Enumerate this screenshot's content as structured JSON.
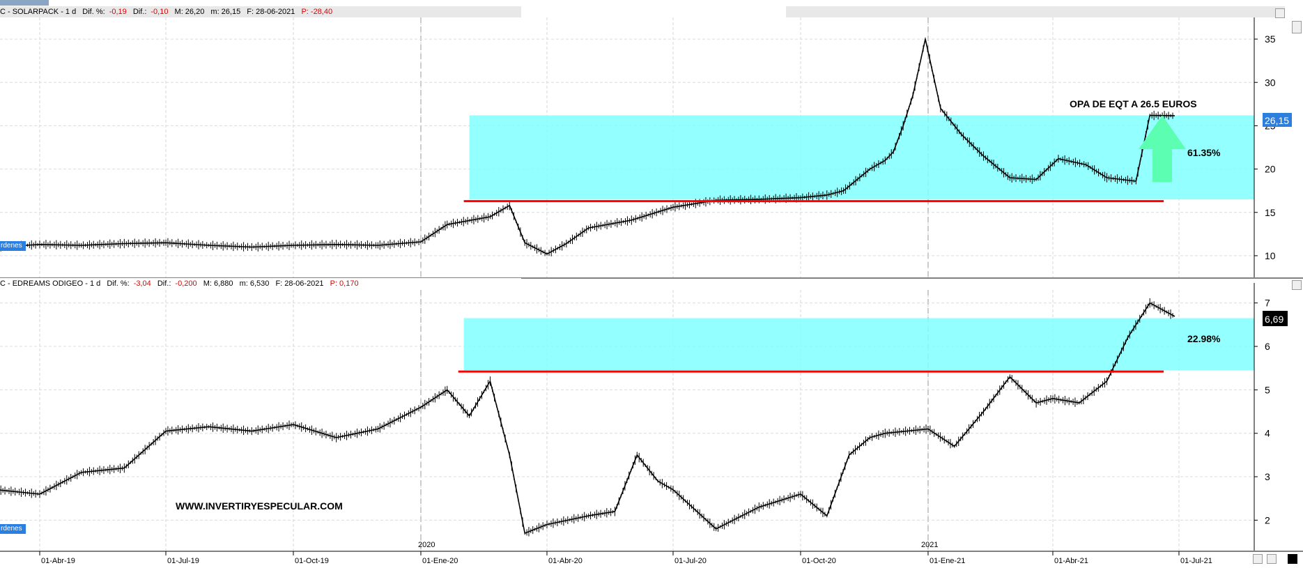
{
  "panels": [
    {
      "id": "solarpack",
      "header": {
        "title": "C - SOLARPACK - 1 d",
        "dif_pct_label": "Dif. %:",
        "dif_pct": "-0,19",
        "dif_label": "Dif.:",
        "dif": "-0,10",
        "max": "M: 26,20",
        "min": "m: 26,15",
        "date": "F: 28-06-2021",
        "p": "P: -28,40"
      },
      "orders_label": "rdenes",
      "price_tag": "26,15",
      "annotation": "OPA DE EQT A 26.5 EUROS",
      "pct_label": "61.35%",
      "colors": {
        "zone": "#80ffff",
        "support_line": "#ff0000",
        "arrow": "#5cffb2",
        "price_tag_bg": "#2d7fde"
      },
      "chart_data": {
        "type": "line",
        "title": "",
        "xlabel": "",
        "ylabel": "",
        "ylim": [
          7.5,
          37.5
        ],
        "yticks": [
          10,
          15,
          20,
          25,
          30,
          35
        ],
        "x": [
          "2019-03-01",
          "2019-04-01",
          "2019-05-01",
          "2019-06-01",
          "2019-07-01",
          "2019-08-01",
          "2019-09-01",
          "2019-10-01",
          "2019-11-01",
          "2019-12-01",
          "2020-01-01",
          "2020-01-20",
          "2020-02-20",
          "2020-03-05",
          "2020-03-16",
          "2020-04-01",
          "2020-04-15",
          "2020-05-01",
          "2020-06-01",
          "2020-07-01",
          "2020-08-01",
          "2020-09-01",
          "2020-10-01",
          "2020-10-20",
          "2020-11-01",
          "2020-11-20",
          "2020-12-01",
          "2020-12-07",
          "2020-12-14",
          "2020-12-21",
          "2020-12-30",
          "2021-01-10",
          "2021-01-25",
          "2021-02-10",
          "2021-03-01",
          "2021-03-20",
          "2021-04-05",
          "2021-04-25",
          "2021-05-10",
          "2021-05-31",
          "2021-06-10",
          "2021-06-28"
        ],
        "series": [
          {
            "values": [
              11,
              11.3,
              11.2,
              11.4,
              11.5,
              11.2,
              11,
              11.2,
              11.3,
              11.2,
              11.6,
              13.6,
              14.5,
              15.8,
              11.5,
              10.2,
              11.4,
              13.2,
              14.1,
              15.6,
              16.4,
              16.5,
              16.7,
              17,
              17.5,
              20,
              21,
              22,
              25,
              28.5,
              35,
              27,
              24,
              21.5,
              19,
              18.8,
              21.2,
              20.5,
              19,
              18.6,
              26.2,
              26.15
            ]
          }
        ],
        "zone": {
          "from": 16.5,
          "to": 26.2,
          "start": "2020-02-05"
        },
        "support": {
          "y": 16.3,
          "start": "2020-02-01",
          "end": "2021-06-20"
        }
      }
    },
    {
      "id": "edreams",
      "header": {
        "title": "C - EDREAMS ODIGEO - 1 d",
        "dif_pct_label": "Dif. %:",
        "dif_pct": "-3,04",
        "dif_label": "Dif.:",
        "dif": "-0,200",
        "max": "M: 6,880",
        "min": "m: 6,530",
        "date": "F: 28-06-2021",
        "p": "P: 0,170"
      },
      "orders_label": "rdenes",
      "price_tag": "6,69",
      "pct_label": "22.98%",
      "watermark": "WWW.INVERTIRYESPECULAR.COM",
      "colors": {
        "zone": "#80ffff",
        "support_line": "#ff0000",
        "price_tag_bg": "#000000"
      },
      "chart_data": {
        "type": "line",
        "title": "",
        "xlabel": "",
        "ylabel": "",
        "ylim": [
          1.3,
          7.3
        ],
        "yticks": [
          2,
          3,
          4,
          5,
          6,
          7
        ],
        "x": [
          "2019-03-01",
          "2019-04-01",
          "2019-05-01",
          "2019-06-01",
          "2019-07-01",
          "2019-08-01",
          "2019-09-01",
          "2019-10-01",
          "2019-11-01",
          "2019-12-01",
          "2020-01-01",
          "2020-01-20",
          "2020-02-05",
          "2020-02-20",
          "2020-03-05",
          "2020-03-16",
          "2020-04-01",
          "2020-05-01",
          "2020-05-20",
          "2020-06-05",
          "2020-06-20",
          "2020-07-01",
          "2020-08-01",
          "2020-09-01",
          "2020-10-01",
          "2020-10-20",
          "2020-11-05",
          "2020-11-20",
          "2020-12-01",
          "2021-01-01",
          "2021-01-20",
          "2021-02-10",
          "2021-03-01",
          "2021-03-20",
          "2021-04-01",
          "2021-04-20",
          "2021-05-10",
          "2021-05-25",
          "2021-06-10",
          "2021-06-28"
        ],
        "series": [
          {
            "values": [
              2.7,
              2.6,
              3.1,
              3.2,
              4.05,
              4.15,
              4.05,
              4.2,
              3.9,
              4.1,
              4.6,
              5,
              4.4,
              5.2,
              3.5,
              1.7,
              1.9,
              2.1,
              2.2,
              3.5,
              2.9,
              2.7,
              1.8,
              2.3,
              2.6,
              2.1,
              3.5,
              3.9,
              4,
              4.1,
              3.7,
              4.5,
              5.3,
              4.7,
              4.8,
              4.7,
              5.2,
              6.2,
              7,
              6.69
            ]
          }
        ],
        "zone": {
          "from": 5.45,
          "to": 6.65,
          "start": "2020-02-01"
        },
        "support": {
          "y": 5.42,
          "start": "2020-01-28",
          "end": "2021-06-20"
        }
      }
    }
  ],
  "x_axis": {
    "labels": [
      "01-Abr-19",
      "01-Jul-19",
      "01-Oct-19",
      "01-Ene-20",
      "01-Abr-20",
      "01-Jul-20",
      "01-Oct-20",
      "01-Ene-21",
      "01-Abr-21",
      "01-Jul-21"
    ],
    "dates": [
      "2019-04-01",
      "2019-07-01",
      "2019-10-01",
      "2020-01-01",
      "2020-04-01",
      "2020-07-01",
      "2020-10-01",
      "2021-01-01",
      "2021-04-01",
      "2021-07-01"
    ],
    "year_markers": [
      "2020",
      "2021"
    ],
    "year_dates": [
      "2020-01-01",
      "2021-01-01"
    ]
  }
}
